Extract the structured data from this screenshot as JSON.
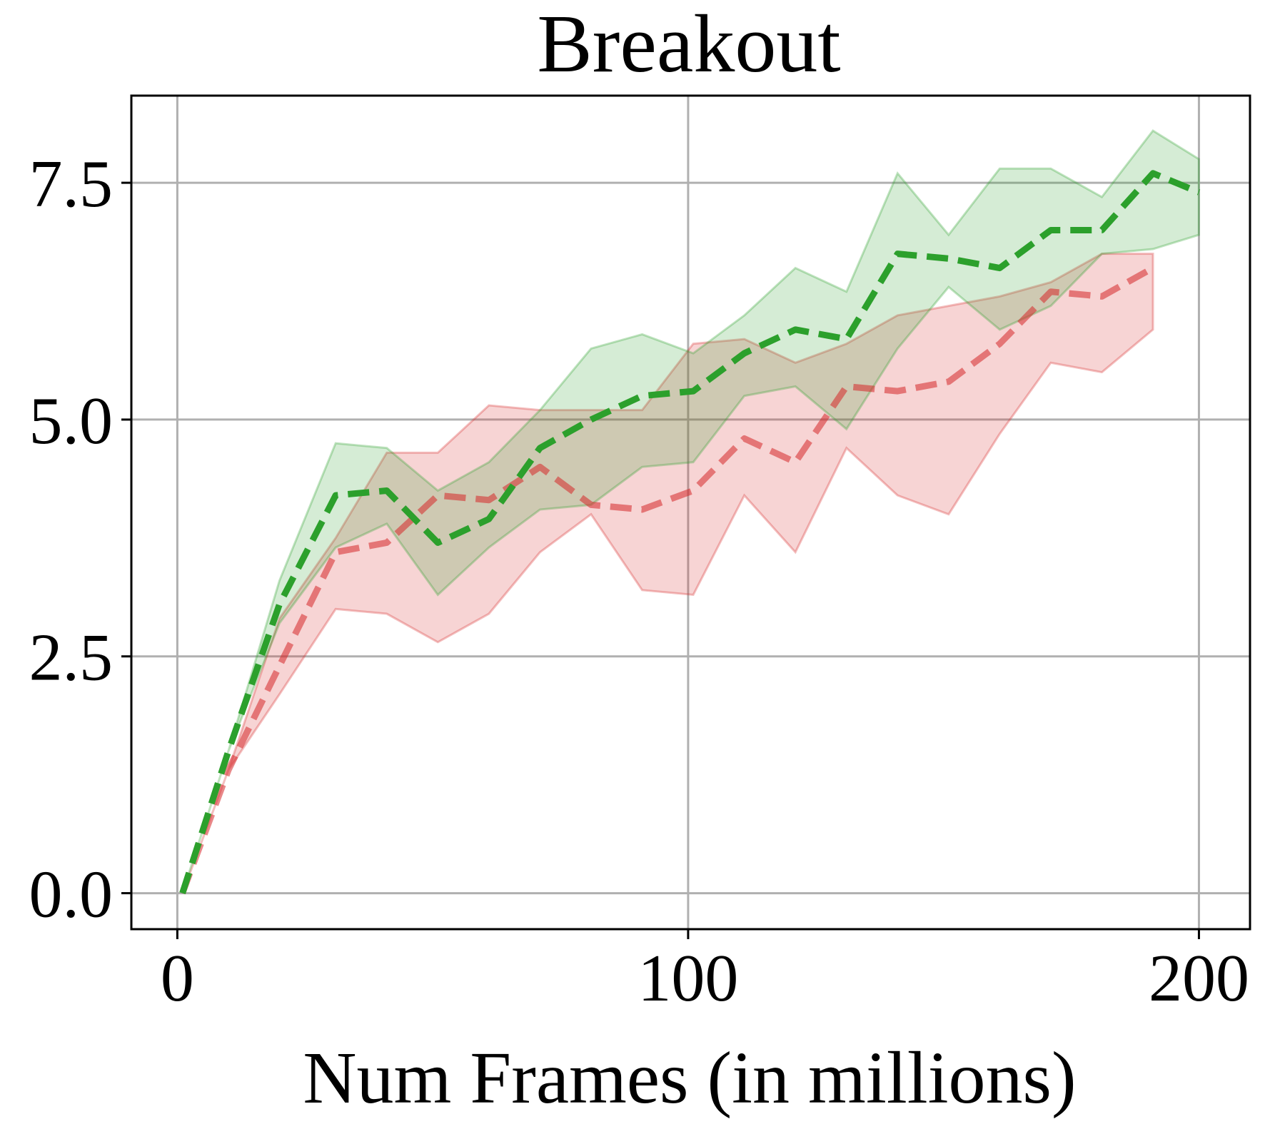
{
  "chart_data": {
    "type": "line",
    "title": "Breakout",
    "xlabel": "Num Frames (in millions)",
    "ylabel": "",
    "xlim": [
      -9,
      210
    ],
    "ylim": [
      -0.38,
      8.42
    ],
    "xticks": [
      0,
      100,
      200
    ],
    "xtick_labels": [
      "0",
      "100",
      "200"
    ],
    "yticks": [
      0.0,
      2.5,
      5.0,
      7.5
    ],
    "ytick_labels": [
      "0.0",
      "2.5",
      "5.0",
      "7.5"
    ],
    "grid": true,
    "legend": "none",
    "series": [
      {
        "color": "#d62728",
        "x": [
          1,
          10,
          20,
          31,
          41,
          51,
          61,
          71,
          81,
          91,
          101,
          111,
          121,
          131,
          141,
          151,
          161,
          171,
          181,
          191
        ],
        "mean": [
          0.0,
          1.3,
          2.4,
          3.6,
          3.7,
          4.2,
          4.15,
          4.5,
          4.1,
          4.05,
          4.25,
          4.8,
          4.55,
          5.35,
          5.3,
          5.4,
          5.8,
          6.35,
          6.3,
          6.6
        ],
        "lower": [
          0.0,
          1.3,
          2.1,
          3.0,
          2.95,
          2.65,
          2.95,
          3.6,
          4.0,
          3.2,
          3.15,
          4.2,
          3.6,
          4.7,
          4.2,
          4.0,
          4.85,
          5.6,
          5.5,
          5.95
        ],
        "upper": [
          0.0,
          1.3,
          2.9,
          3.75,
          4.65,
          4.65,
          5.15,
          5.1,
          5.1,
          5.1,
          5.8,
          5.85,
          5.6,
          5.8,
          6.1,
          6.2,
          6.3,
          6.45,
          6.75,
          6.75
        ]
      },
      {
        "color": "#2ca02c",
        "x": [
          1,
          10,
          20,
          31,
          41,
          51,
          61,
          71,
          81,
          91,
          101,
          111,
          121,
          131,
          141,
          151,
          161,
          171,
          181,
          191,
          200
        ],
        "mean": [
          0.0,
          1.5,
          3.05,
          4.2,
          4.25,
          3.7,
          3.95,
          4.7,
          5.0,
          5.25,
          5.3,
          5.7,
          5.95,
          5.85,
          6.75,
          6.7,
          6.6,
          7.0,
          7.0,
          7.6,
          7.4
        ],
        "lower": [
          0.0,
          1.5,
          2.85,
          3.65,
          3.9,
          3.15,
          3.65,
          4.05,
          4.1,
          4.5,
          4.55,
          5.25,
          5.35,
          4.9,
          5.75,
          6.4,
          5.95,
          6.2,
          6.75,
          6.8,
          6.95
        ],
        "upper": [
          0.0,
          1.5,
          3.3,
          4.75,
          4.7,
          4.25,
          4.55,
          5.1,
          5.75,
          5.9,
          5.7,
          6.1,
          6.6,
          6.35,
          7.6,
          6.95,
          7.65,
          7.65,
          7.35,
          8.05,
          7.75
        ]
      }
    ]
  }
}
